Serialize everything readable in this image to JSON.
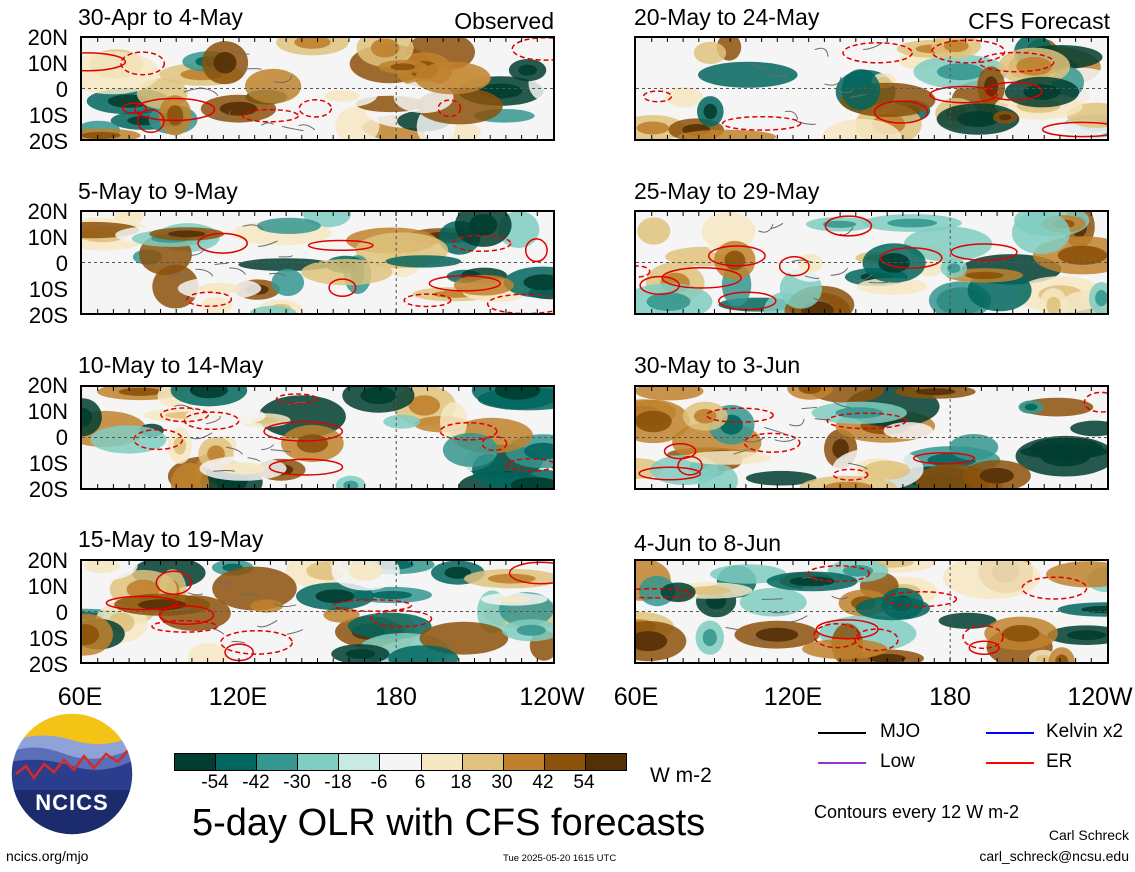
{
  "panels_left": [
    {
      "date": "30-Apr to 4-May",
      "label": "Observed"
    },
    {
      "date": "5-May to 9-May",
      "label": ""
    },
    {
      "date": "10-May to 14-May",
      "label": ""
    },
    {
      "date": "15-May to 19-May",
      "label": ""
    }
  ],
  "panels_right": [
    {
      "date": "20-May to 24-May",
      "label": "CFS Forecast"
    },
    {
      "date": "25-May to 29-May",
      "label": ""
    },
    {
      "date": "30-May to 3-Jun",
      "label": ""
    },
    {
      "date": "4-Jun to 8-Jun",
      "label": ""
    }
  ],
  "lat_labels": [
    "20N",
    "10N",
    "0",
    "10S",
    "20S"
  ],
  "lon_labels": [
    "60E",
    "120E",
    "180",
    "120W"
  ],
  "legend": {
    "items": [
      {
        "label": "MJO",
        "color": "#000000"
      },
      {
        "label": "Kelvin x2",
        "color": "#0000ff"
      },
      {
        "label": "Low",
        "color": "#9933cc"
      },
      {
        "label": "ER",
        "color": "#ff0000"
      }
    ],
    "contour_note": "Contours every 12 W m-2"
  },
  "colorbar": {
    "ticks": [
      "-54",
      "-42",
      "-30",
      "-18",
      "-6",
      "6",
      "18",
      "30",
      "42",
      "54"
    ],
    "colors": [
      "#013d30",
      "#01665e",
      "#35978f",
      "#80cdc1",
      "#c7eae5",
      "#f5f5f5",
      "#f6e8c3",
      "#dfc27d",
      "#bf812d",
      "#8c510a",
      "#543005"
    ],
    "units": "W m-2"
  },
  "logo": {
    "text": "NCICS"
  },
  "main_title": "5-day OLR with CFS forecasts",
  "footer": {
    "url": "ncics.org/mjo",
    "timestamp": "Tue 2025-05-20 1615 UTC",
    "author": "Carl Schreck",
    "email": "carl_schreck@ncsu.edu"
  }
}
